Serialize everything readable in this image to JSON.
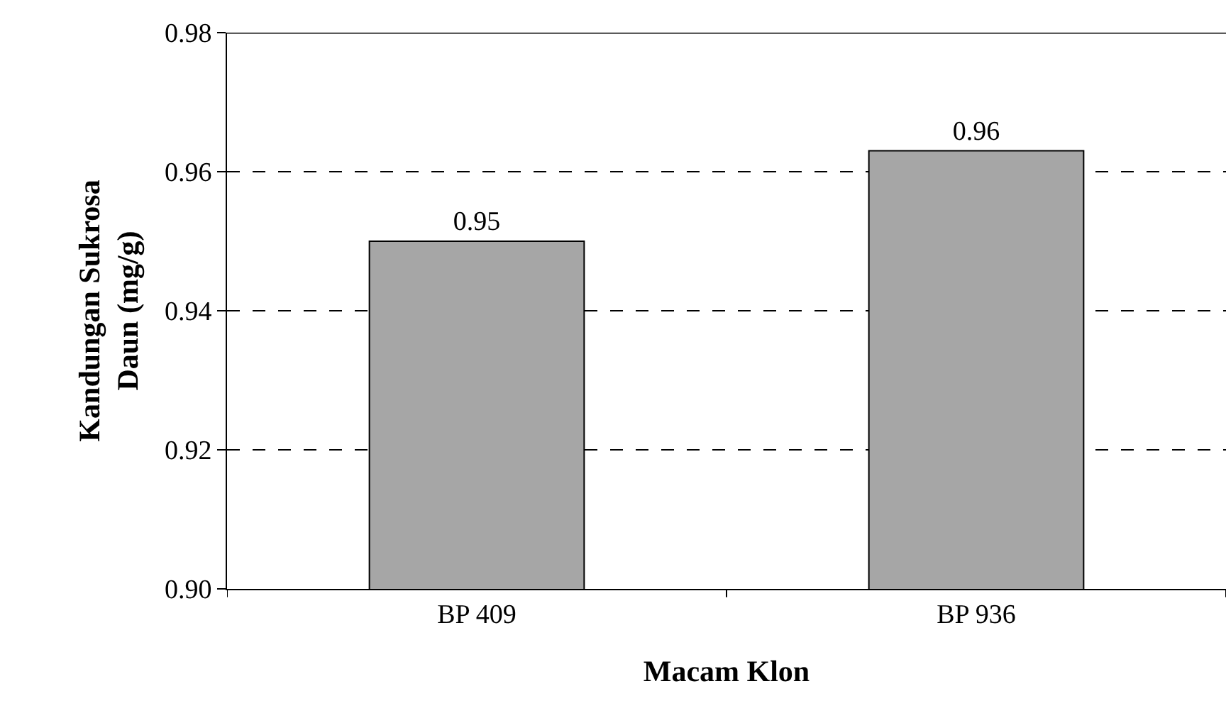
{
  "chart_data": {
    "type": "bar",
    "xlabel": "Macam Klon",
    "ylabel": "Kandungan Sukrosa Daun (mg/g)",
    "categories": [
      "BP 409",
      "BP 936"
    ],
    "values": [
      0.95,
      0.963
    ],
    "value_labels": [
      "0.95",
      "0.96"
    ],
    "color": "#a6a6a6",
    "ylim": [
      0.9,
      0.98
    ],
    "yticks": [
      {
        "value": 0.9,
        "label": "0.90"
      },
      0.92,
      0.94,
      0.96,
      0.98
    ],
    "grid": "y"
  }
}
